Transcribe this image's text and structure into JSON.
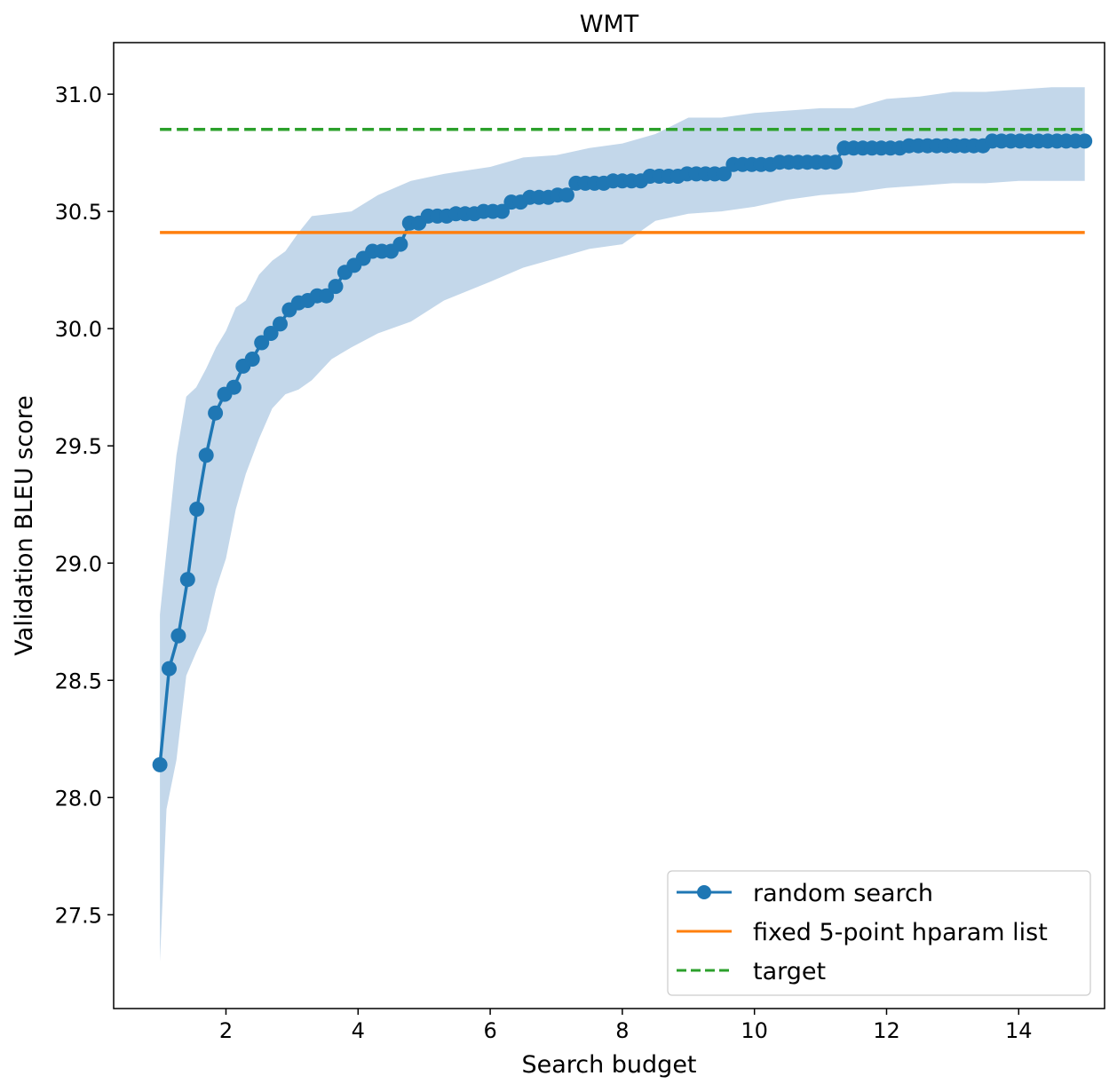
{
  "chart_data": {
    "type": "line",
    "title": "WMT",
    "xlabel": "Search budget",
    "ylabel": "Validation BLEU score",
    "xlim": [
      0.3,
      15.3
    ],
    "ylim": [
      27.1,
      31.22
    ],
    "xticks": [
      2,
      4,
      6,
      8,
      10,
      12,
      14
    ],
    "xtick_labels": [
      "2",
      "4",
      "6",
      "8",
      "10",
      "12",
      "14"
    ],
    "yticks": [
      27.5,
      28.0,
      28.5,
      29.0,
      29.5,
      30.0,
      30.5,
      31.0
    ],
    "ytick_labels": [
      "27.5",
      "28.0",
      "28.5",
      "29.0",
      "29.5",
      "30.0",
      "30.5",
      "31.0"
    ],
    "grid": false,
    "legend_position": "bottom-right",
    "series": [
      {
        "name": "random search",
        "style": "line-with-markers",
        "color": "#1f77b4",
        "band_color": "#c3d7ea",
        "x": [
          1.0,
          1.14,
          1.28,
          1.42,
          1.56,
          1.7,
          1.84,
          1.98,
          2.12,
          2.26,
          2.4,
          2.54,
          2.68,
          2.82,
          2.96,
          3.1,
          3.24,
          3.38,
          3.52,
          3.66,
          3.8,
          3.94,
          4.08,
          4.22,
          4.36,
          4.5,
          4.64,
          4.78,
          4.92,
          5.06,
          5.2,
          5.34,
          5.48,
          5.62,
          5.76,
          5.9,
          6.04,
          6.18,
          6.32,
          6.46,
          6.6,
          6.74,
          6.88,
          7.02,
          7.16,
          7.3,
          7.44,
          7.58,
          7.72,
          7.86,
          8.0,
          8.14,
          8.28,
          8.42,
          8.56,
          8.7,
          8.84,
          8.98,
          9.12,
          9.26,
          9.4,
          9.54,
          9.68,
          9.82,
          9.96,
          10.1,
          10.24,
          10.38,
          10.52,
          10.66,
          10.8,
          10.94,
          11.08,
          11.22,
          11.36,
          11.5,
          11.64,
          11.78,
          11.92,
          12.06,
          12.2,
          12.34,
          12.48,
          12.62,
          12.76,
          12.9,
          13.04,
          13.18,
          13.32,
          13.46,
          13.6,
          13.74,
          13.88,
          14.02,
          14.16,
          14.3,
          14.44,
          14.58,
          14.72,
          14.86,
          15.0
        ],
        "values": [
          28.14,
          28.55,
          28.69,
          28.93,
          29.23,
          29.46,
          29.64,
          29.72,
          29.75,
          29.84,
          29.87,
          29.94,
          29.98,
          30.02,
          30.08,
          30.11,
          30.12,
          30.14,
          30.14,
          30.18,
          30.24,
          30.27,
          30.3,
          30.33,
          30.33,
          30.33,
          30.36,
          30.45,
          30.45,
          30.48,
          30.48,
          30.48,
          30.49,
          30.49,
          30.49,
          30.5,
          30.5,
          30.5,
          30.54,
          30.54,
          30.56,
          30.56,
          30.56,
          30.57,
          30.57,
          30.62,
          30.62,
          30.62,
          30.62,
          30.63,
          30.63,
          30.63,
          30.63,
          30.65,
          30.65,
          30.65,
          30.65,
          30.66,
          30.66,
          30.66,
          30.66,
          30.66,
          30.7,
          30.7,
          30.7,
          30.7,
          30.7,
          30.71,
          30.71,
          30.71,
          30.71,
          30.71,
          30.71,
          30.71,
          30.77,
          30.77,
          30.77,
          30.77,
          30.77,
          30.77,
          30.77,
          30.78,
          30.78,
          30.78,
          30.78,
          30.78,
          30.78,
          30.78,
          30.78,
          30.78,
          30.8,
          30.8,
          30.8,
          30.8,
          30.8,
          30.8,
          30.8,
          30.8,
          30.8,
          30.8,
          30.8
        ],
        "band_x": [
          1.0,
          1.1,
          1.25,
          1.4,
          1.55,
          1.7,
          1.85,
          2.0,
          2.15,
          2.3,
          2.5,
          2.7,
          2.9,
          3.1,
          3.3,
          3.6,
          3.9,
          4.3,
          4.8,
          5.3,
          6.0,
          6.5,
          7.0,
          7.5,
          8.0,
          8.5,
          9.0,
          9.5,
          10.0,
          10.5,
          11.0,
          11.5,
          12.0,
          12.5,
          13.0,
          13.5,
          14.0,
          14.5,
          15.0
        ],
        "band_upper": [
          28.78,
          29.05,
          29.46,
          29.71,
          29.75,
          29.83,
          29.92,
          29.99,
          30.09,
          30.12,
          30.23,
          30.29,
          30.33,
          30.41,
          30.48,
          30.49,
          30.5,
          30.57,
          30.63,
          30.66,
          30.69,
          30.73,
          30.74,
          30.77,
          30.79,
          30.83,
          30.9,
          30.9,
          30.92,
          30.93,
          30.94,
          30.94,
          30.98,
          30.99,
          31.01,
          31.01,
          31.02,
          31.03,
          31.03
        ],
        "band_lower": [
          27.3,
          27.95,
          28.16,
          28.52,
          28.62,
          28.71,
          28.89,
          29.02,
          29.23,
          29.38,
          29.53,
          29.66,
          29.72,
          29.74,
          29.78,
          29.87,
          29.92,
          29.98,
          30.03,
          30.12,
          30.2,
          30.26,
          30.3,
          30.34,
          30.36,
          30.46,
          30.49,
          30.5,
          30.52,
          30.55,
          30.57,
          30.58,
          30.6,
          30.61,
          30.62,
          30.62,
          30.63,
          30.63,
          30.63
        ]
      },
      {
        "name": "fixed 5-point hparam list",
        "style": "solid",
        "color": "#ff7f0e",
        "x": [
          1.0,
          15.0
        ],
        "values": [
          30.41,
          30.41
        ]
      },
      {
        "name": "target",
        "style": "dashed",
        "color": "#2ca02c",
        "x": [
          1.0,
          15.0
        ],
        "values": [
          30.85,
          30.85
        ]
      }
    ]
  }
}
